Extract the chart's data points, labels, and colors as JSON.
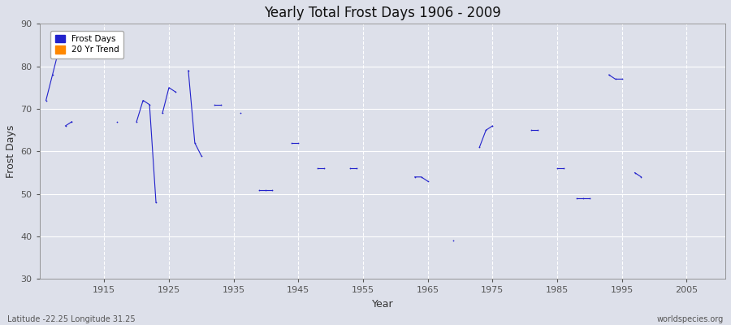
{
  "title": "Yearly Total Frost Days 1906 - 2009",
  "xlabel": "Year",
  "ylabel": "Frost Days",
  "xlim": [
    1905,
    2011
  ],
  "ylim": [
    30,
    90
  ],
  "yticks": [
    30,
    40,
    50,
    60,
    70,
    80,
    90
  ],
  "xticks": [
    1915,
    1925,
    1935,
    1945,
    1955,
    1965,
    1975,
    1985,
    1995,
    2005
  ],
  "bg_color": "#dde0ea",
  "plot_bg_color": "#dde0ea",
  "grid_color": "#ffffff",
  "line_color": "#2222cc",
  "point_color": "#2222cc",
  "data_segments": [
    {
      "years": [
        1906,
        1907,
        1908
      ],
      "values": [
        72,
        78,
        84
      ]
    },
    {
      "years": [
        1909,
        1910
      ],
      "values": [
        66,
        67
      ]
    },
    {
      "years": [
        1917
      ],
      "values": [
        67
      ]
    },
    {
      "years": [
        1920,
        1921,
        1922,
        1923
      ],
      "values": [
        67,
        72,
        71,
        48
      ]
    },
    {
      "years": [
        1924,
        1925,
        1926
      ],
      "values": [
        69,
        75,
        74
      ]
    },
    {
      "years": [
        1928,
        1929,
        1930
      ],
      "values": [
        79,
        62,
        59
      ]
    },
    {
      "years": [
        1932,
        1933
      ],
      "values": [
        71,
        71
      ]
    },
    {
      "years": [
        1936
      ],
      "values": [
        69
      ]
    },
    {
      "years": [
        1939,
        1940,
        1941
      ],
      "values": [
        51,
        51,
        51
      ]
    },
    {
      "years": [
        1944,
        1945
      ],
      "values": [
        62,
        62
      ]
    },
    {
      "years": [
        1948,
        1949
      ],
      "values": [
        56,
        56
      ]
    },
    {
      "years": [
        1953,
        1954
      ],
      "values": [
        56,
        56
      ]
    },
    {
      "years": [
        1963,
        1964,
        1965
      ],
      "values": [
        54,
        54,
        53
      ]
    },
    {
      "years": [
        1969
      ],
      "values": [
        39
      ]
    },
    {
      "years": [
        1973,
        1974,
        1975
      ],
      "values": [
        61,
        65,
        66
      ]
    },
    {
      "years": [
        1981,
        1982
      ],
      "values": [
        65,
        65
      ]
    },
    {
      "years": [
        1985,
        1986
      ],
      "values": [
        56,
        56
      ]
    },
    {
      "years": [
        1988,
        1989,
        1990
      ],
      "values": [
        49,
        49,
        49
      ]
    },
    {
      "years": [
        1993,
        1994,
        1995
      ],
      "values": [
        78,
        77,
        77
      ]
    },
    {
      "years": [
        1997,
        1998
      ],
      "values": [
        55,
        54
      ]
    }
  ],
  "footnote_left": "Latitude -22.25 Longitude 31.25",
  "footnote_right": "worldspecies.org",
  "legend_items": [
    {
      "label": "Frost Days",
      "color": "#2222cc"
    },
    {
      "label": "20 Yr Trend",
      "color": "#ff8800"
    }
  ]
}
